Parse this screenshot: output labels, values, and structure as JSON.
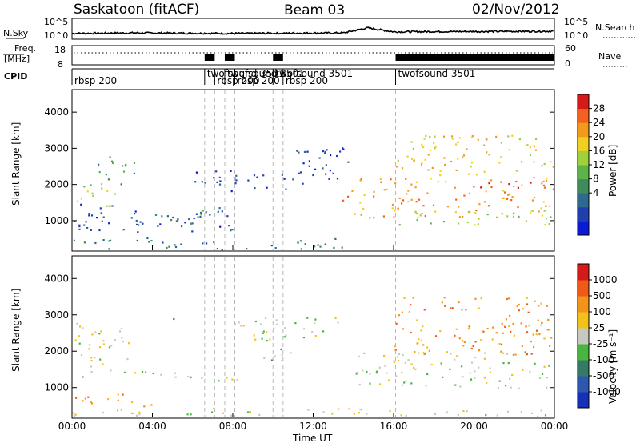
{
  "header": {
    "station": "Saskatoon (fitACF)",
    "beam": "Beam 03",
    "date": "02/Nov/2012"
  },
  "noise_panel": {
    "left_label": "N.Sky",
    "right_label": "N.Search",
    "left_ticks": [
      "10^5",
      "10^0"
    ],
    "right_ticks": [
      "10^5",
      "10^0"
    ]
  },
  "freq_panel": {
    "left_label_1": "Freq.",
    "left_label_2": "[MHz]",
    "right_label": "Nave",
    "left_ticks": [
      "18",
      "8"
    ],
    "right_ticks": [
      "60",
      "0"
    ]
  },
  "cpid_panel": {
    "label": "CPID",
    "segments": [
      {
        "t": 0.0,
        "name": "rbsp 200",
        "row": 1
      },
      {
        "t": 6.6,
        "name": "twofsound 3501",
        "row": 0
      },
      {
        "t": 7.1,
        "name": "rbsp 200",
        "row": 1
      },
      {
        "t": 7.6,
        "name": "twofsound 3501",
        "row": 0
      },
      {
        "t": 8.1,
        "name": "rbsp 200",
        "row": 1
      },
      {
        "t": 10.0,
        "name": "twofsound 3501",
        "row": 0
      },
      {
        "t": 10.5,
        "name": "rbsp 200",
        "row": 1
      },
      {
        "t": 16.1,
        "name": "twofsound 3501",
        "row": 0
      }
    ],
    "dividers": [
      6.6,
      7.1,
      7.6,
      8.1,
      10.0,
      10.5,
      16.1
    ]
  },
  "chart_data": [
    {
      "type": "heatmap",
      "name": "power",
      "ylabel": "Slant Range [km]",
      "yticks": [
        1000,
        2000,
        3000,
        4000
      ],
      "ylim": [
        180,
        4600
      ],
      "xlim": [
        0,
        24
      ],
      "colorbar_label": "Power [dB]",
      "colorbar_ticks": [
        "28",
        "24",
        "20",
        "16",
        "12",
        "8",
        "4"
      ],
      "colors": [
        "#0a1bd6",
        "#1f3fb0",
        "#2e6a8e",
        "#3f8b5a",
        "#5cb34a",
        "#9fd13a",
        "#f0d020",
        "#f39a1a",
        "#f2611e",
        "#d51a1a"
      ],
      "regions": [
        {
          "t0": 0.0,
          "t1": 2.2,
          "r0": 1400,
          "r1": 2100,
          "level": 5,
          "note": "tilted band"
        },
        {
          "t0": 1.2,
          "t1": 3.3,
          "r0": 2000,
          "r1": 2800,
          "level": 3
        },
        {
          "t0": 0.0,
          "t1": 8.0,
          "r0": 700,
          "r1": 1500,
          "level": 1
        },
        {
          "t0": 4.0,
          "t1": 6.5,
          "r0": 850,
          "r1": 1300,
          "level": 3
        },
        {
          "t0": 0.0,
          "t1": 14.0,
          "r0": 200,
          "r1": 550,
          "level": 2
        },
        {
          "t0": 6.0,
          "t1": 12.0,
          "r0": 1800,
          "r1": 2400,
          "level": 1
        },
        {
          "t0": 10.8,
          "t1": 13.8,
          "r0": 2000,
          "r1": 3100,
          "level": 1
        },
        {
          "t0": 13.4,
          "t1": 14.2,
          "r0": 1500,
          "r1": 1900,
          "level": 8
        },
        {
          "t0": 14.0,
          "t1": 24.0,
          "r0": 1100,
          "r1": 2300,
          "level": 7
        },
        {
          "t0": 16.0,
          "t1": 24.0,
          "r0": 2300,
          "r1": 3400,
          "level": 6
        },
        {
          "t0": 20.0,
          "t1": 24.0,
          "r0": 1900,
          "r1": 2100,
          "level": 9
        },
        {
          "t0": 16.0,
          "t1": 24.0,
          "r0": 900,
          "r1": 1300,
          "level": 5
        }
      ]
    },
    {
      "type": "heatmap",
      "name": "velocity",
      "ylabel": "Slant Range [km]",
      "xlabel": "Time UT",
      "xticks": [
        "00:00",
        "04:00",
        "08:00",
        "12:00",
        "16:00",
        "20:00",
        "00:00"
      ],
      "yticks": [
        1000,
        2000,
        3000,
        4000
      ],
      "ylim": [
        180,
        4600
      ],
      "xlim": [
        0,
        24
      ],
      "colorbar_label": "Velocity  [m s⁻¹]",
      "colorbar_ticks": [
        "1000",
        "500",
        "100",
        "25",
        "-25",
        "-100",
        "-500",
        "-1000"
      ],
      "colors": [
        "#1730b8",
        "#2e58b0",
        "#347a64",
        "#49b541",
        "#c8c8c0",
        "#f2c21a",
        "#f2931a",
        "#ef5a16",
        "#d51a1a"
      ],
      "regions": [
        {
          "t0": 0.0,
          "t1": 2.8,
          "r0": 1300,
          "r1": 2800,
          "level": 4,
          "note": "ground scatter band"
        },
        {
          "t0": 2.5,
          "t1": 8.5,
          "r0": 1200,
          "r1": 1500,
          "level": 4
        },
        {
          "t0": 8.0,
          "t1": 13.5,
          "r0": 2300,
          "r1": 3000,
          "level": 4
        },
        {
          "t0": 14.0,
          "t1": 24.0,
          "r0": 1000,
          "r1": 2000,
          "level": 4
        },
        {
          "t0": 0.0,
          "t1": 4.0,
          "r0": 500,
          "r1": 900,
          "level": 6
        },
        {
          "t0": 16.0,
          "t1": 24.0,
          "r0": 1900,
          "r1": 3500,
          "level": 6
        },
        {
          "t0": 0.0,
          "t1": 24.0,
          "r0": 200,
          "r1": 450,
          "level": 4
        },
        {
          "t0": 9.5,
          "t1": 11.5,
          "r0": 1700,
          "r1": 2100,
          "level": 3
        },
        {
          "t0": 4.8,
          "t1": 5.2,
          "r0": 2700,
          "r1": 3100,
          "level": 2
        }
      ]
    }
  ],
  "series_overview": {
    "sky_noise_trace": [
      {
        "t": 0,
        "v": 0.3
      },
      {
        "t": 3,
        "v": 0.35
      },
      {
        "t": 8,
        "v": 0.3
      },
      {
        "t": 13.5,
        "v": 0.35
      },
      {
        "t": 14.7,
        "v": 0.8
      },
      {
        "t": 16,
        "v": 0.45
      },
      {
        "t": 24,
        "v": 0.5
      }
    ],
    "nave_high_periods": [
      {
        "t0": 6.6,
        "t1": 7.1
      },
      {
        "t0": 7.6,
        "t1": 8.1
      },
      {
        "t0": 10.0,
        "t1": 10.5
      },
      {
        "t0": 16.1,
        "t1": 24.0
      }
    ]
  }
}
